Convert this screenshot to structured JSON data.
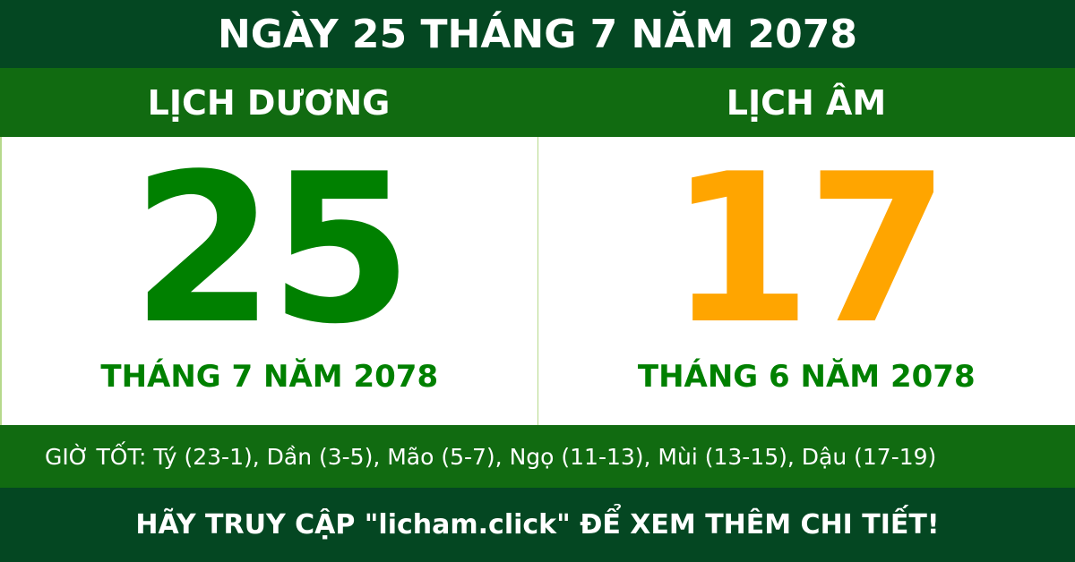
{
  "header": {
    "title": "NGÀY 25 THÁNG 7 NĂM 2078"
  },
  "columns": {
    "solar": {
      "label": "LỊCH DƯƠNG",
      "day": "25",
      "month_year": "THÁNG 7 NĂM 2078",
      "color": "#008000"
    },
    "lunar": {
      "label": "LỊCH ÂM",
      "day": "17",
      "month_year": "THÁNG 6 NĂM 2078",
      "color": "#ffa500"
    }
  },
  "good_hours": "GIỜ TỐT: Tý (23-1), Dần (3-5), Mão (5-7), Ngọ (11-13), Mùi (13-15), Dậu (17-19)",
  "footer": {
    "cta": "HÃY TRUY CẬP \"licham.click\" ĐỂ XEM THÊM CHI TIẾT!"
  },
  "colors": {
    "dark_green": "#044722",
    "green": "#116b11"
  }
}
